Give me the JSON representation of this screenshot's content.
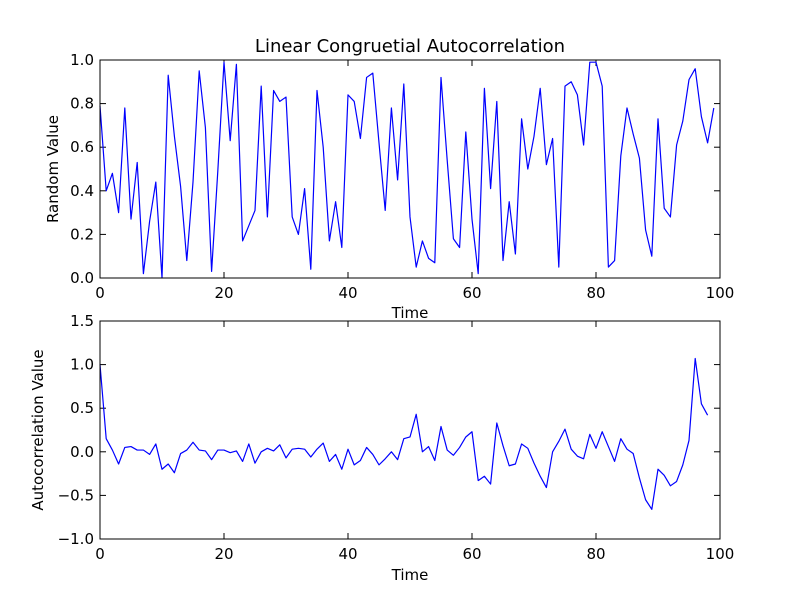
{
  "chart_data": [
    {
      "type": "line",
      "title": "Linear Congruetial Autocorrelation",
      "xlabel": "Time",
      "ylabel": "Random Value",
      "xlim": [
        0,
        100
      ],
      "ylim": [
        0.0,
        1.0
      ],
      "xticks": [
        "0",
        "20",
        "40",
        "60",
        "80",
        "100"
      ],
      "yticks": [
        "0.0",
        "0.2",
        "0.4",
        "0.6",
        "0.8",
        "1.0"
      ],
      "grid": false,
      "color": "#0000ff",
      "series": [
        {
          "x": [
            0,
            1,
            2,
            3,
            4,
            5,
            6,
            7,
            8,
            9,
            10,
            11,
            12,
            13,
            14,
            15,
            16,
            17,
            18,
            19,
            20,
            21,
            22,
            23,
            24,
            25,
            26,
            27,
            28,
            29,
            30,
            31,
            32,
            33,
            34,
            35,
            36,
            37,
            38,
            39,
            40,
            41,
            42,
            43,
            44,
            45,
            46,
            47,
            48,
            49,
            50,
            51,
            52,
            53,
            54,
            55,
            56,
            57,
            58,
            59,
            60,
            61,
            62,
            63,
            64,
            65,
            66,
            67,
            68,
            69,
            70,
            71,
            72,
            73,
            74,
            75,
            76,
            77,
            78,
            79,
            80,
            81,
            82,
            83,
            84,
            85,
            86,
            87,
            88,
            89,
            90,
            91,
            92,
            93,
            94,
            95,
            96,
            97,
            98,
            99
          ],
          "values": [
            0.79,
            0.4,
            0.48,
            0.3,
            0.78,
            0.27,
            0.53,
            0.02,
            0.26,
            0.44,
            0.0,
            0.93,
            0.65,
            0.42,
            0.08,
            0.44,
            0.95,
            0.69,
            0.03,
            0.49,
            0.99,
            0.63,
            0.98,
            0.17,
            0.24,
            0.31,
            0.88,
            0.28,
            0.86,
            0.81,
            0.83,
            0.28,
            0.2,
            0.41,
            0.04,
            0.86,
            0.6,
            0.17,
            0.35,
            0.14,
            0.84,
            0.81,
            0.64,
            0.92,
            0.94,
            0.62,
            0.31,
            0.78,
            0.45,
            0.89,
            0.28,
            0.05,
            0.17,
            0.09,
            0.07,
            0.92,
            0.54,
            0.18,
            0.14,
            0.67,
            0.27,
            0.02,
            0.87,
            0.41,
            0.81,
            0.08,
            0.35,
            0.11,
            0.73,
            0.5,
            0.65,
            0.87,
            0.52,
            0.64,
            0.05,
            0.88,
            0.9,
            0.84,
            0.61,
            0.99,
            0.99,
            0.88,
            0.05,
            0.08,
            0.56,
            0.78,
            0.66,
            0.55,
            0.22,
            0.1,
            0.73,
            0.32,
            0.28,
            0.61,
            0.72,
            0.91,
            0.96,
            0.74,
            0.62,
            0.78
          ]
        }
      ]
    },
    {
      "type": "line",
      "title": "",
      "xlabel": "Time",
      "ylabel": "Autocorrelation Value",
      "xlim": [
        0,
        100
      ],
      "ylim": [
        -1.0,
        1.5
      ],
      "xticks": [
        "0",
        "20",
        "40",
        "60",
        "80",
        "100"
      ],
      "yticks": [
        "−1.0",
        "−0.5",
        "0.0",
        "0.5",
        "1.0",
        "1.5"
      ],
      "grid": false,
      "color": "#0000ff",
      "series": [
        {
          "x": [
            0,
            1,
            2,
            3,
            4,
            5,
            6,
            7,
            8,
            9,
            10,
            11,
            12,
            13,
            14,
            15,
            16,
            17,
            18,
            19,
            20,
            21,
            22,
            23,
            24,
            25,
            26,
            27,
            28,
            29,
            30,
            31,
            32,
            33,
            34,
            35,
            36,
            37,
            38,
            39,
            40,
            41,
            42,
            43,
            44,
            45,
            46,
            47,
            48,
            49,
            50,
            51,
            52,
            53,
            54,
            55,
            56,
            57,
            58,
            59,
            60,
            61,
            62,
            63,
            64,
            65,
            66,
            67,
            68,
            69,
            70,
            71,
            72,
            73,
            74,
            75,
            76,
            77,
            78,
            79,
            80,
            81,
            82,
            83,
            84,
            85,
            86,
            87,
            88,
            89,
            90,
            91,
            92,
            93,
            94,
            95,
            96,
            97,
            98
          ],
          "values": [
            1.0,
            0.15,
            0.02,
            -0.14,
            0.05,
            0.06,
            0.02,
            0.02,
            -0.03,
            0.09,
            -0.2,
            -0.14,
            -0.24,
            -0.02,
            0.02,
            0.11,
            0.02,
            0.01,
            -0.09,
            0.02,
            0.02,
            -0.01,
            0.01,
            -0.11,
            0.09,
            -0.13,
            0.0,
            0.04,
            0.01,
            0.08,
            -0.07,
            0.03,
            0.04,
            0.03,
            -0.06,
            0.03,
            0.1,
            -0.11,
            -0.03,
            -0.2,
            0.03,
            -0.15,
            -0.1,
            0.05,
            -0.03,
            -0.15,
            -0.08,
            0.0,
            -0.09,
            0.15,
            0.17,
            0.43,
            0.0,
            0.06,
            -0.1,
            0.29,
            0.02,
            -0.04,
            0.05,
            0.17,
            0.23,
            -0.33,
            -0.28,
            -0.37,
            0.33,
            0.07,
            -0.16,
            -0.14,
            0.09,
            0.04,
            -0.13,
            -0.28,
            -0.41,
            0.0,
            0.12,
            0.26,
            0.03,
            -0.05,
            -0.08,
            0.2,
            0.04,
            0.23,
            0.06,
            -0.11,
            0.15,
            0.03,
            -0.02,
            -0.3,
            -0.55,
            -0.66,
            -0.2,
            -0.27,
            -0.39,
            -0.34,
            -0.15,
            0.13,
            1.07,
            0.55,
            0.42
          ]
        }
      ]
    }
  ]
}
